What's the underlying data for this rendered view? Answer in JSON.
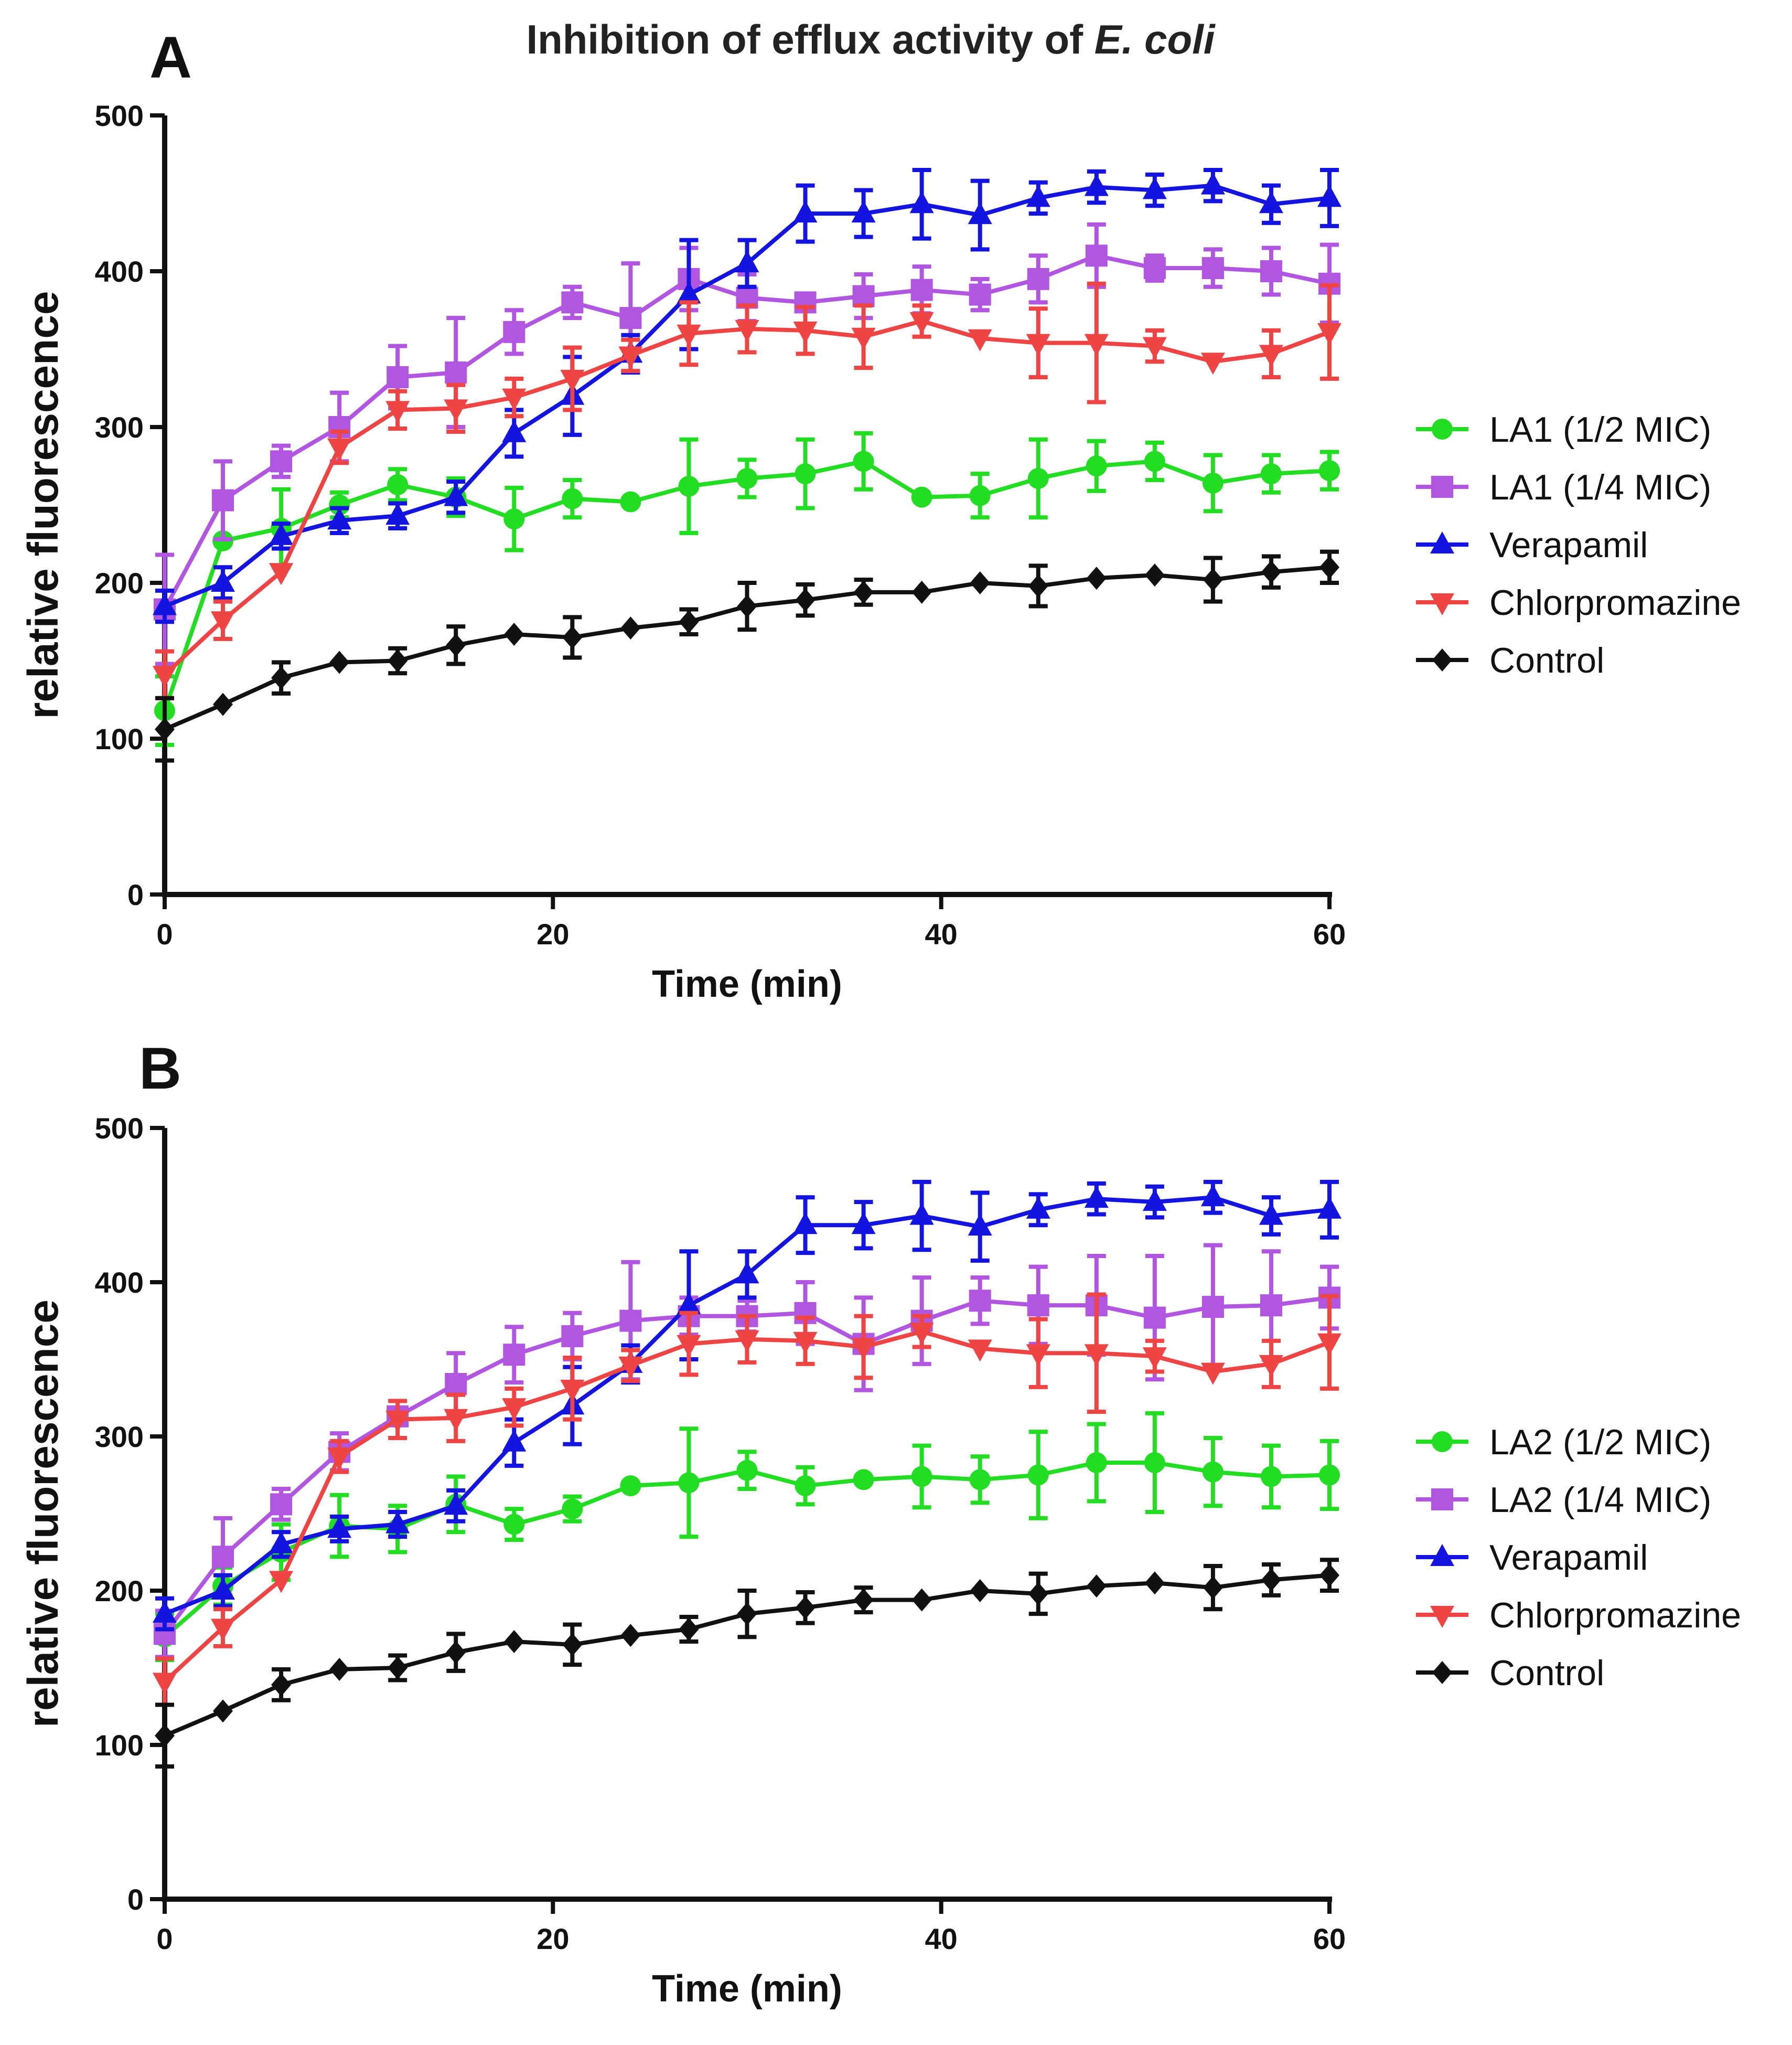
{
  "figure": {
    "title_main": "Inhibition of efflux activity of ",
    "title_italic": "E. coli"
  },
  "chart_data": [
    {
      "panel": "A",
      "type": "line",
      "title": "Inhibition of efflux activity of E. coli",
      "xlabel": "Time (min)",
      "ylabel": "relative fluorescence",
      "xlim": [
        0,
        60
      ],
      "ylim": [
        0,
        500
      ],
      "xticks": [
        0,
        20,
        40,
        60
      ],
      "yticks": [
        0,
        100,
        200,
        300,
        400,
        500
      ],
      "grid": false,
      "legend_position": "right",
      "x": [
        0,
        3,
        6,
        9,
        12,
        15,
        18,
        21,
        24,
        27,
        30,
        33,
        36,
        39,
        42,
        45,
        48,
        51,
        54,
        57,
        60
      ],
      "series": [
        {
          "name": "LA1 (1/2 MIC)",
          "color": "#22dd22",
          "marker": "circle",
          "values": [
            118,
            227,
            235,
            250,
            263,
            255,
            241,
            254,
            252,
            262,
            267,
            270,
            278,
            255,
            256,
            267,
            275,
            278,
            264,
            270,
            272
          ],
          "errors": [
            22,
            0,
            25,
            8,
            10,
            12,
            20,
            12,
            0,
            30,
            12,
            22,
            18,
            0,
            14,
            25,
            16,
            12,
            18,
            12,
            12
          ]
        },
        {
          "name": "LA1 (1/4 MIC)",
          "color": "#b056e0",
          "marker": "square",
          "values": [
            183,
            253,
            278,
            300,
            332,
            335,
            361,
            380,
            370,
            395,
            383,
            380,
            384,
            388,
            385,
            395,
            410,
            402,
            402,
            400,
            392
          ],
          "errors": [
            35,
            25,
            10,
            22,
            20,
            35,
            14,
            10,
            35,
            20,
            15,
            0,
            14,
            15,
            10,
            15,
            20,
            8,
            12,
            15,
            25
          ]
        },
        {
          "name": "Verapamil",
          "color": "#1414e0",
          "marker": "triangle-up",
          "values": [
            185,
            200,
            230,
            240,
            243,
            255,
            296,
            320,
            347,
            385,
            405,
            437,
            437,
            443,
            436,
            447,
            454,
            452,
            455,
            443,
            447
          ],
          "errors": [
            10,
            10,
            8,
            8,
            8,
            10,
            15,
            25,
            12,
            35,
            15,
            18,
            15,
            22,
            22,
            10,
            10,
            10,
            10,
            12,
            18
          ]
        },
        {
          "name": "Chlorpromazine",
          "color": "#ee4444",
          "marker": "triangle-down",
          "values": [
            141,
            176,
            207,
            287,
            311,
            312,
            319,
            331,
            346,
            360,
            363,
            362,
            358,
            368,
            357,
            354,
            354,
            352,
            342,
            347,
            361
          ],
          "errors": [
            15,
            12,
            0,
            10,
            12,
            15,
            12,
            20,
            10,
            20,
            15,
            15,
            20,
            10,
            0,
            22,
            38,
            10,
            0,
            15,
            30
          ]
        },
        {
          "name": "Control",
          "color": "#111111",
          "marker": "diamond",
          "values": [
            106,
            122,
            139,
            149,
            150,
            160,
            167,
            165,
            171,
            175,
            185,
            189,
            194,
            194,
            200,
            198,
            203,
            205,
            202,
            207,
            210
          ],
          "errors": [
            20,
            0,
            10,
            0,
            8,
            12,
            0,
            13,
            0,
            8,
            15,
            10,
            8,
            0,
            0,
            13,
            0,
            0,
            14,
            10,
            10
          ]
        }
      ]
    },
    {
      "panel": "B",
      "type": "line",
      "title": "",
      "xlabel": "Time (min)",
      "ylabel": "relative fluorescence",
      "xlim": [
        0,
        60
      ],
      "ylim": [
        0,
        500
      ],
      "xticks": [
        0,
        20,
        40,
        60
      ],
      "yticks": [
        0,
        100,
        200,
        300,
        400,
        500
      ],
      "grid": false,
      "legend_position": "right",
      "x": [
        0,
        3,
        6,
        9,
        12,
        15,
        18,
        21,
        24,
        27,
        30,
        33,
        36,
        39,
        42,
        45,
        48,
        51,
        54,
        57,
        60
      ],
      "series": [
        {
          "name": "LA2 (1/2 MIC)",
          "color": "#22dd22",
          "marker": "circle",
          "values": [
            170,
            203,
            225,
            242,
            240,
            256,
            243,
            253,
            268,
            270,
            278,
            268,
            272,
            274,
            272,
            275,
            283,
            283,
            277,
            274,
            275
          ],
          "errors": [
            15,
            12,
            18,
            20,
            15,
            18,
            10,
            8,
            0,
            35,
            12,
            12,
            0,
            20,
            15,
            28,
            25,
            32,
            22,
            20,
            22
          ]
        },
        {
          "name": "LA2 (1/4 MIC)",
          "color": "#b056e0",
          "marker": "square",
          "values": [
            172,
            222,
            256,
            290,
            313,
            334,
            353,
            365,
            375,
            378,
            378,
            380,
            360,
            375,
            388,
            385,
            385,
            377,
            384,
            385,
            390
          ],
          "errors": [
            15,
            25,
            10,
            12,
            5,
            20,
            18,
            15,
            38,
            12,
            10,
            20,
            30,
            28,
            15,
            25,
            32,
            40,
            40,
            35,
            20
          ]
        },
        {
          "name": "Verapamil",
          "color": "#1414e0",
          "marker": "triangle-up",
          "values": [
            185,
            200,
            230,
            240,
            243,
            255,
            296,
            320,
            347,
            385,
            405,
            437,
            437,
            443,
            436,
            447,
            454,
            452,
            455,
            443,
            447
          ],
          "errors": [
            10,
            10,
            8,
            8,
            8,
            10,
            15,
            25,
            12,
            35,
            15,
            18,
            15,
            22,
            22,
            10,
            10,
            10,
            10,
            12,
            18
          ]
        },
        {
          "name": "Chlorpromazine",
          "color": "#ee4444",
          "marker": "triangle-down",
          "values": [
            141,
            176,
            207,
            287,
            311,
            312,
            319,
            331,
            346,
            360,
            363,
            362,
            358,
            368,
            357,
            354,
            354,
            352,
            342,
            347,
            361
          ],
          "errors": [
            15,
            12,
            0,
            10,
            12,
            15,
            12,
            20,
            10,
            20,
            15,
            15,
            20,
            10,
            0,
            22,
            38,
            10,
            0,
            15,
            30
          ]
        },
        {
          "name": "Control",
          "color": "#111111",
          "marker": "diamond",
          "values": [
            106,
            122,
            139,
            149,
            150,
            160,
            167,
            165,
            171,
            175,
            185,
            189,
            194,
            194,
            200,
            198,
            203,
            205,
            202,
            207,
            210
          ],
          "errors": [
            20,
            0,
            10,
            0,
            8,
            12,
            0,
            13,
            0,
            8,
            15,
            10,
            8,
            0,
            0,
            13,
            0,
            0,
            14,
            10,
            10
          ]
        }
      ]
    }
  ]
}
